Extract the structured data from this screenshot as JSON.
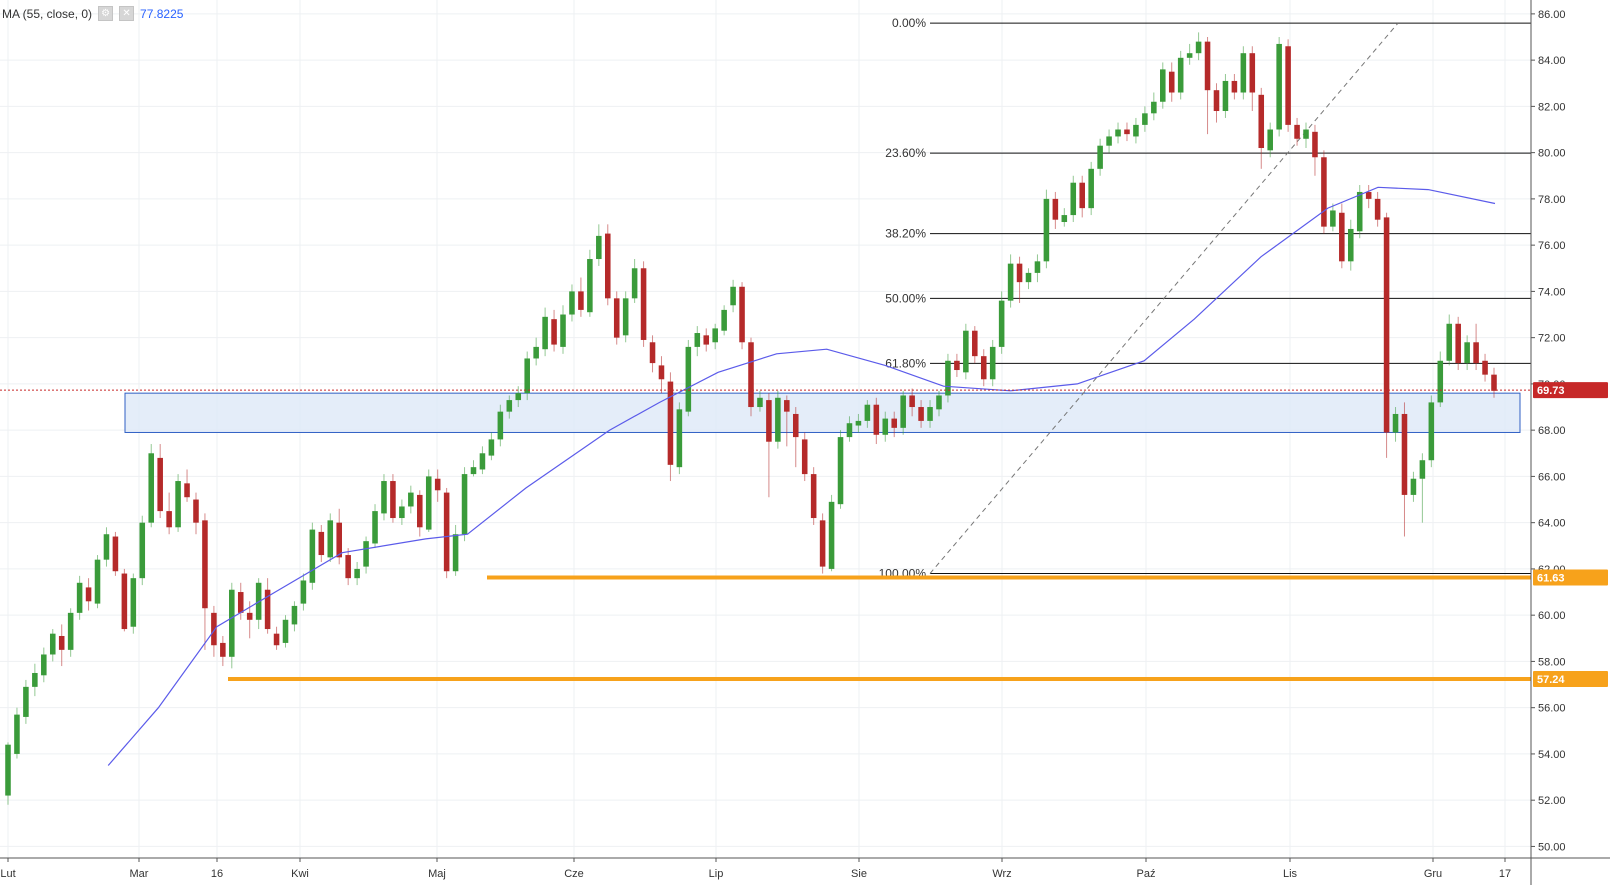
{
  "legend": {
    "label": "MA (55, close, 0)",
    "value": "77.8225",
    "settings_icon": "gear-icon",
    "close_icon": "close-icon"
  },
  "colors": {
    "up": "#3a9b3a",
    "down": "#b52a2a",
    "ma": "#5b5bea",
    "zone_fill": "#dde8f7",
    "zone_stroke": "#2f5fc4",
    "support": "#f7a21b",
    "price_line": "#c62828",
    "grid": "#eef0f3"
  },
  "chart_data": {
    "type": "candlestick",
    "x_tick_labels": [
      "Lut",
      "Mar",
      "16",
      "Kwi",
      "Maj",
      "Cze",
      "Lip",
      "Sie",
      "Wrz",
      "Paź",
      "Lis",
      "Gru",
      "17"
    ],
    "y_tick_labels": [
      "50.00",
      "52.00",
      "54.00",
      "56.00",
      "58.00",
      "60.00",
      "62.00",
      "64.00",
      "66.00",
      "68.00",
      "70.00",
      "72.00",
      "74.00",
      "76.00",
      "78.00",
      "80.00",
      "82.00",
      "84.00",
      "86.00"
    ],
    "ylim": [
      49.5,
      86.6
    ],
    "fibonacci": {
      "high": 85.6,
      "low": 61.8,
      "levels": [
        {
          "label": "0.00%",
          "price": 85.6
        },
        {
          "label": "23.60%",
          "price": 79.98
        },
        {
          "label": "38.20%",
          "price": 76.5
        },
        {
          "label": "50.00%",
          "price": 73.7
        },
        {
          "label": "61.80%",
          "price": 70.89
        },
        {
          "label": "100.00%",
          "price": 61.8
        }
      ]
    },
    "support_levels": [
      {
        "price": 61.63,
        "label": "61.63"
      },
      {
        "price": 57.24,
        "label": "57.24"
      }
    ],
    "zone": {
      "top": 69.6,
      "bottom": 67.9
    },
    "current_price": {
      "price": 69.73,
      "label": "69.73"
    },
    "ma55_points": [
      [
        0.12,
        53.5
      ],
      [
        0.18,
        56
      ],
      [
        0.25,
        59.5
      ],
      [
        0.32,
        61
      ],
      [
        0.4,
        62.7
      ],
      [
        0.5,
        63.3
      ],
      [
        0.55,
        63.5
      ],
      [
        0.62,
        65.5
      ],
      [
        0.72,
        68
      ],
      [
        0.78,
        69.2
      ],
      [
        0.85,
        70.5
      ],
      [
        0.92,
        71.3
      ],
      [
        0.98,
        71.5
      ],
      [
        1.05,
        70.8
      ],
      [
        1.12,
        69.9
      ],
      [
        1.2,
        69.7
      ],
      [
        1.28,
        70
      ],
      [
        1.36,
        71
      ],
      [
        1.42,
        72.8
      ],
      [
        1.5,
        75.5
      ],
      [
        1.58,
        77.6
      ],
      [
        1.64,
        78.5
      ],
      [
        1.7,
        78.4
      ],
      [
        1.78,
        77.8
      ]
    ],
    "candles": [
      [
        52.2,
        54.4,
        51.8,
        54.5
      ],
      [
        54.0,
        55.7,
        53.8,
        56.0
      ],
      [
        55.6,
        56.9,
        55.3,
        57.2
      ],
      [
        56.9,
        57.5,
        56.5,
        57.9
      ],
      [
        57.4,
        58.3,
        57.1,
        58.6
      ],
      [
        58.3,
        59.2,
        58.0,
        59.4
      ],
      [
        59.1,
        58.5,
        57.8,
        59.6
      ],
      [
        58.5,
        60.1,
        58.2,
        60.3
      ],
      [
        60.1,
        61.4,
        59.8,
        61.7
      ],
      [
        61.2,
        60.6,
        60.2,
        61.6
      ],
      [
        60.5,
        62.4,
        60.3,
        62.6
      ],
      [
        62.4,
        63.5,
        62.1,
        63.8
      ],
      [
        63.4,
        61.9,
        61.7,
        63.6
      ],
      [
        61.8,
        59.4,
        59.3,
        62.0
      ],
      [
        59.5,
        61.6,
        59.2,
        61.8
      ],
      [
        61.6,
        64.0,
        61.3,
        64.3
      ],
      [
        64.0,
        67.0,
        63.8,
        67.4
      ],
      [
        66.8,
        64.5,
        64.2,
        67.4
      ],
      [
        64.5,
        63.8,
        63.5,
        65.3
      ],
      [
        63.8,
        65.8,
        63.6,
        66.1
      ],
      [
        65.7,
        65.1,
        64.9,
        66.3
      ],
      [
        65.0,
        64.0,
        63.5,
        65.3
      ],
      [
        64.1,
        60.3,
        58.5,
        64.4
      ],
      [
        60.1,
        58.7,
        58.2,
        60.4
      ],
      [
        58.8,
        58.2,
        57.8,
        59.1
      ],
      [
        58.2,
        61.1,
        57.7,
        61.4
      ],
      [
        61.0,
        60.1,
        59.8,
        61.4
      ],
      [
        60.1,
        59.8,
        59.0,
        60.6
      ],
      [
        59.8,
        61.4,
        59.4,
        61.6
      ],
      [
        61.1,
        59.4,
        59.2,
        61.6
      ],
      [
        59.2,
        58.7,
        58.5,
        59.5
      ],
      [
        58.8,
        59.8,
        58.6,
        60.0
      ],
      [
        59.6,
        60.4,
        59.3,
        60.6
      ],
      [
        60.5,
        61.5,
        60.2,
        61.8
      ],
      [
        61.4,
        63.7,
        61.1,
        64.0
      ],
      [
        63.6,
        62.6,
        62.3,
        63.9
      ],
      [
        62.5,
        64.1,
        62.3,
        64.4
      ],
      [
        64.0,
        62.5,
        62.2,
        64.6
      ],
      [
        62.6,
        61.6,
        61.3,
        62.9
      ],
      [
        61.6,
        62.0,
        61.3,
        62.3
      ],
      [
        62.1,
        63.2,
        61.8,
        63.4
      ],
      [
        63.1,
        64.5,
        62.9,
        64.8
      ],
      [
        64.4,
        65.8,
        64.1,
        66.1
      ],
      [
        65.8,
        64.2,
        64.0,
        66.1
      ],
      [
        64.2,
        64.7,
        63.9,
        65.0
      ],
      [
        64.7,
        65.3,
        64.4,
        65.6
      ],
      [
        65.2,
        63.8,
        63.4,
        65.4
      ],
      [
        63.7,
        66.0,
        63.6,
        66.3
      ],
      [
        65.9,
        65.4,
        64.9,
        66.3
      ],
      [
        65.3,
        61.9,
        61.6,
        65.5
      ],
      [
        61.9,
        63.5,
        61.7,
        63.9
      ],
      [
        63.5,
        66.1,
        63.2,
        66.4
      ],
      [
        66.1,
        66.4,
        66.0,
        66.7
      ],
      [
        66.3,
        67.0,
        66.1,
        67.3
      ],
      [
        66.9,
        67.6,
        66.7,
        67.9
      ],
      [
        67.6,
        68.8,
        67.3,
        69.1
      ],
      [
        68.8,
        69.3,
        68.5,
        69.5
      ],
      [
        69.3,
        69.6,
        69.0,
        69.9
      ],
      [
        69.6,
        71.1,
        69.3,
        71.4
      ],
      [
        71.1,
        71.6,
        70.8,
        72.0
      ],
      [
        71.5,
        72.9,
        71.2,
        73.3
      ],
      [
        72.8,
        71.7,
        71.4,
        73.2
      ],
      [
        71.6,
        73.0,
        71.3,
        73.4
      ],
      [
        73.0,
        74.0,
        72.7,
        74.3
      ],
      [
        74.0,
        73.2,
        72.9,
        74.6
      ],
      [
        73.1,
        75.4,
        72.9,
        75.8
      ],
      [
        75.4,
        76.4,
        75.1,
        76.9
      ],
      [
        76.5,
        73.7,
        73.4,
        76.9
      ],
      [
        73.7,
        72.0,
        71.7,
        74.0
      ],
      [
        72.1,
        73.7,
        71.8,
        74.0
      ],
      [
        73.7,
        75.0,
        73.5,
        75.4
      ],
      [
        75.0,
        71.9,
        71.6,
        75.3
      ],
      [
        71.8,
        70.9,
        70.5,
        72.1
      ],
      [
        70.8,
        70.2,
        69.6,
        71.2
      ],
      [
        70.1,
        66.5,
        65.8,
        70.5
      ],
      [
        66.4,
        68.9,
        66.1,
        69.2
      ],
      [
        68.8,
        71.6,
        68.6,
        71.9
      ],
      [
        71.6,
        72.2,
        71.2,
        72.5
      ],
      [
        72.1,
        71.7,
        71.4,
        72.4
      ],
      [
        71.8,
        72.4,
        71.5,
        72.6
      ],
      [
        72.3,
        73.2,
        72.1,
        73.4
      ],
      [
        73.4,
        74.2,
        73.1,
        74.5
      ],
      [
        74.2,
        71.8,
        71.5,
        74.4
      ],
      [
        71.8,
        69.0,
        68.6,
        72.0
      ],
      [
        69.0,
        69.4,
        68.8,
        69.7
      ],
      [
        69.3,
        67.5,
        65.1,
        69.6
      ],
      [
        67.5,
        69.4,
        67.2,
        69.7
      ],
      [
        69.3,
        68.8,
        67.3,
        69.5
      ],
      [
        68.7,
        67.7,
        66.4,
        69.0
      ],
      [
        67.6,
        66.1,
        65.8,
        67.9
      ],
      [
        66.1,
        64.2,
        63.9,
        66.4
      ],
      [
        64.1,
        62.1,
        61.8,
        64.4
      ],
      [
        62.0,
        64.9,
        61.9,
        65.2
      ],
      [
        64.8,
        67.7,
        64.6,
        68.0
      ],
      [
        67.7,
        68.3,
        67.5,
        68.6
      ],
      [
        68.2,
        68.4,
        67.9,
        68.7
      ],
      [
        68.4,
        69.1,
        68.1,
        69.3
      ],
      [
        69.1,
        67.8,
        67.4,
        69.4
      ],
      [
        67.8,
        68.5,
        67.5,
        68.8
      ],
      [
        68.5,
        68.1,
        67.7,
        68.8
      ],
      [
        68.1,
        69.5,
        67.8,
        69.7
      ],
      [
        69.5,
        69.0,
        68.6,
        69.8
      ],
      [
        69.0,
        68.4,
        68.1,
        69.3
      ],
      [
        68.4,
        69.0,
        68.1,
        69.3
      ],
      [
        68.9,
        69.5,
        68.6,
        69.7
      ],
      [
        69.5,
        71.0,
        69.2,
        71.3
      ],
      [
        71.0,
        70.6,
        70.3,
        71.3
      ],
      [
        70.5,
        72.3,
        70.2,
        72.6
      ],
      [
        72.3,
        71.2,
        70.9,
        72.5
      ],
      [
        71.2,
        70.2,
        69.9,
        71.5
      ],
      [
        70.2,
        71.6,
        69.9,
        71.9
      ],
      [
        71.6,
        73.6,
        71.3,
        74.0
      ],
      [
        73.6,
        75.2,
        73.3,
        75.6
      ],
      [
        75.2,
        74.4,
        73.5,
        75.5
      ],
      [
        74.4,
        74.8,
        74.1,
        75.0
      ],
      [
        74.8,
        75.3,
        74.4,
        75.6
      ],
      [
        75.3,
        78.0,
        75.0,
        78.4
      ],
      [
        78.0,
        77.1,
        76.7,
        78.3
      ],
      [
        77.0,
        77.3,
        76.8,
        77.6
      ],
      [
        77.3,
        78.7,
        77.0,
        79.0
      ],
      [
        78.7,
        77.6,
        77.2,
        79.0
      ],
      [
        77.6,
        79.3,
        77.3,
        79.6
      ],
      [
        79.3,
        80.3,
        79.0,
        80.6
      ],
      [
        80.3,
        80.7,
        80.0,
        81.0
      ],
      [
        80.7,
        81.0,
        80.4,
        81.3
      ],
      [
        81.0,
        80.8,
        80.5,
        81.3
      ],
      [
        80.7,
        81.2,
        80.4,
        81.5
      ],
      [
        81.2,
        81.7,
        80.9,
        82.0
      ],
      [
        81.7,
        82.2,
        81.4,
        82.6
      ],
      [
        82.2,
        83.6,
        81.9,
        83.9
      ],
      [
        83.5,
        82.6,
        82.2,
        83.9
      ],
      [
        82.6,
        84.1,
        82.3,
        84.4
      ],
      [
        84.1,
        84.3,
        83.8,
        84.7
      ],
      [
        84.3,
        84.8,
        84.0,
        85.2
      ],
      [
        84.8,
        82.7,
        80.8,
        85.0
      ],
      [
        82.7,
        81.8,
        81.3,
        83.0
      ],
      [
        81.8,
        83.1,
        81.5,
        83.4
      ],
      [
        83.1,
        82.6,
        82.3,
        83.4
      ],
      [
        82.6,
        84.3,
        82.3,
        84.6
      ],
      [
        84.3,
        82.6,
        81.8,
        84.6
      ],
      [
        82.5,
        80.2,
        79.3,
        82.8
      ],
      [
        80.1,
        81.0,
        79.8,
        81.3
      ],
      [
        81.0,
        84.7,
        80.7,
        85.0
      ],
      [
        84.6,
        81.2,
        80.9,
        84.9
      ],
      [
        81.2,
        80.6,
        80.3,
        81.5
      ],
      [
        80.6,
        81.0,
        80.2,
        81.3
      ],
      [
        80.9,
        79.8,
        79.0,
        81.2
      ],
      [
        79.8,
        76.8,
        76.5,
        80.1
      ],
      [
        76.8,
        77.5,
        76.6,
        77.8
      ],
      [
        77.4,
        75.3,
        75.0,
        77.8
      ],
      [
        75.3,
        76.7,
        74.9,
        77.1
      ],
      [
        76.6,
        78.3,
        76.3,
        78.6
      ],
      [
        78.3,
        78.0,
        77.6,
        78.6
      ],
      [
        78.0,
        77.1,
        76.8,
        78.3
      ],
      [
        77.2,
        67.9,
        66.8,
        77.4
      ],
      [
        67.9,
        68.7,
        67.5,
        69.0
      ],
      [
        68.7,
        65.2,
        63.4,
        69.2
      ],
      [
        65.2,
        65.9,
        64.9,
        66.2
      ],
      [
        65.9,
        66.7,
        64.0,
        67.0
      ],
      [
        66.7,
        69.2,
        66.4,
        69.5
      ],
      [
        69.2,
        71.0,
        69.0,
        71.4
      ],
      [
        71.0,
        72.6,
        70.8,
        73.0
      ],
      [
        72.6,
        70.9,
        70.6,
        72.9
      ],
      [
        70.9,
        71.8,
        70.6,
        72.1
      ],
      [
        71.8,
        70.9,
        70.6,
        72.6
      ],
      [
        71.0,
        70.4,
        70.1,
        71.3
      ],
      [
        70.4,
        69.7,
        69.4,
        70.7
      ]
    ]
  }
}
